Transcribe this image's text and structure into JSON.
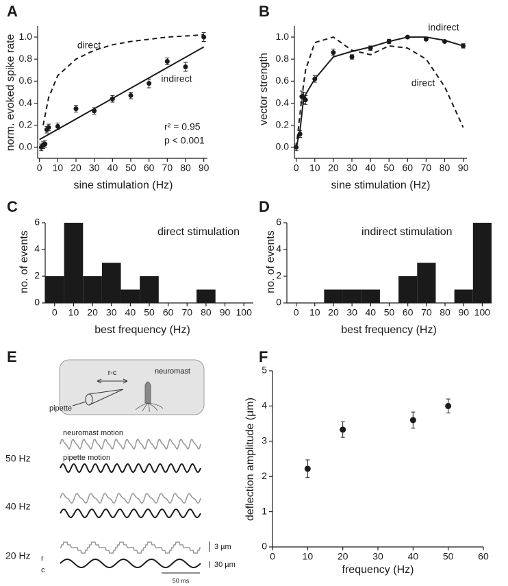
{
  "chart_data": [
    {
      "panel": "A",
      "type": "scatter",
      "xlabel": "sine stimulation (Hz)",
      "ylabel": "norm. evoked spike rate",
      "xlim": [
        -1,
        92
      ],
      "ylim": [
        -0.1,
        1.1
      ],
      "xticks": [
        0,
        10,
        20,
        30,
        40,
        50,
        60,
        70,
        80,
        90
      ],
      "yticks": [
        {
          "value": 0,
          "label": "0.0"
        },
        0.2,
        0.4,
        0.6,
        0.8,
        {
          "value": 1,
          "label": "1.0"
        }
      ],
      "series": [
        {
          "kind": "points",
          "color": "#1a1a1a",
          "x": [
            1,
            2,
            3,
            4,
            5,
            10,
            20,
            30,
            40,
            50,
            60,
            70,
            80,
            90
          ],
          "values": [
            0.0,
            0.02,
            0.03,
            0.16,
            0.18,
            0.19,
            0.35,
            0.33,
            0.44,
            0.47,
            0.58,
            0.78,
            0.73,
            1.0
          ],
          "errors": [
            0.03,
            0.03,
            0.03,
            0.03,
            0.03,
            0.03,
            0.03,
            0.03,
            0.03,
            0.03,
            0.04,
            0.03,
            0.04,
            0.04
          ]
        },
        {
          "name": "indirect",
          "kind": "line",
          "style": "solid",
          "color": "#1a1a1a",
          "x": [
            0,
            90
          ],
          "values": [
            0.07,
            0.91
          ]
        },
        {
          "name": "direct",
          "kind": "line",
          "style": "dashed",
          "color": "#1a1a1a",
          "x": [
            2,
            5,
            10,
            20,
            30,
            40,
            50,
            60,
            70,
            80,
            90
          ],
          "values": [
            0.2,
            0.45,
            0.65,
            0.8,
            0.88,
            0.93,
            0.96,
            0.98,
            1.0,
            1.01,
            1.02
          ]
        }
      ],
      "annotations": [
        "r² = 0.95",
        "p < 0.001"
      ]
    },
    {
      "panel": "B",
      "type": "scatter",
      "xlabel": "sine stimulation (Hz)",
      "ylabel": "vector strength",
      "xlim": [
        -1,
        92
      ],
      "ylim": [
        -0.1,
        1.1
      ],
      "xticks": [
        0,
        10,
        20,
        30,
        40,
        50,
        60,
        70,
        80,
        90
      ],
      "yticks": [
        {
          "value": 0,
          "label": "0.0"
        },
        0.2,
        0.4,
        0.6,
        0.8,
        {
          "value": 1,
          "label": "1.0"
        }
      ],
      "series": [
        {
          "kind": "points",
          "color": "#1a1a1a",
          "x": [
            0,
            2,
            3,
            4,
            5,
            10,
            20,
            30,
            40,
            50,
            60,
            70,
            80,
            90
          ],
          "values": [
            0.0,
            0.12,
            0.46,
            0.45,
            0.43,
            0.62,
            0.86,
            0.82,
            0.9,
            0.96,
            1.0,
            0.98,
            0.96,
            0.92
          ],
          "errors": [
            0.03,
            0.03,
            0.05,
            0.05,
            0.04,
            0.03,
            0.03,
            0.02,
            0.02,
            0.02,
            0.01,
            0.01,
            0.01,
            0.02
          ]
        },
        {
          "name": "indirect",
          "kind": "line",
          "style": "solid",
          "color": "#1a1a1a",
          "x": [
            0,
            2,
            4,
            10,
            20,
            30,
            40,
            50,
            60,
            70,
            80,
            90
          ],
          "values": [
            0.0,
            0.15,
            0.45,
            0.62,
            0.82,
            0.87,
            0.91,
            0.96,
            1.0,
            1.0,
            0.97,
            0.92
          ]
        },
        {
          "name": "direct",
          "kind": "line",
          "style": "dashed",
          "color": "#1a1a1a",
          "x": [
            0,
            3,
            5,
            10,
            20,
            30,
            40,
            50,
            60,
            70,
            80,
            90
          ],
          "values": [
            0.0,
            0.45,
            0.7,
            0.95,
            1.0,
            0.88,
            0.84,
            0.92,
            0.9,
            0.8,
            0.55,
            0.18
          ]
        }
      ]
    },
    {
      "panel": "C",
      "type": "histogram",
      "xlabel": "best frequency (Hz)",
      "ylabel": "no. of events",
      "color": "#1a1a1a",
      "xlim": [
        -5,
        105
      ],
      "ylim": [
        0,
        6
      ],
      "xticks": [
        0,
        10,
        20,
        30,
        40,
        50,
        60,
        70,
        80,
        90,
        100
      ],
      "yticks": [
        0,
        2,
        4,
        6
      ],
      "bins": [
        -5,
        5,
        15,
        25,
        35,
        45,
        55,
        65,
        75,
        85,
        95,
        105
      ],
      "values": [
        2,
        6,
        2,
        3,
        1,
        2,
        0,
        0,
        1,
        0,
        0
      ],
      "annotations": [
        "direct stimulation"
      ]
    },
    {
      "panel": "D",
      "type": "histogram",
      "xlabel": "best frequency (Hz)",
      "ylabel": "no. of events",
      "color": "#1a1a1a",
      "xlim": [
        -5,
        105
      ],
      "ylim": [
        0,
        6
      ],
      "xticks": [
        0,
        10,
        20,
        30,
        40,
        50,
        60,
        70,
        80,
        90,
        100
      ],
      "yticks": [
        0,
        2,
        4,
        6
      ],
      "bins": [
        -5,
        5,
        15,
        25,
        35,
        45,
        55,
        65,
        75,
        85,
        95,
        105
      ],
      "values": [
        0,
        0,
        1,
        1,
        1,
        0,
        2,
        3,
        0,
        1,
        6
      ],
      "annotations": [
        "indirect stimulation"
      ]
    },
    {
      "panel": "F",
      "type": "scatter",
      "xlabel": "frequency (Hz)",
      "ylabel": "deflection amplitude (µm)",
      "xlim": [
        0,
        60
      ],
      "ylim": [
        0,
        5
      ],
      "xticks": [
        0,
        10,
        20,
        30,
        40,
        50,
        60
      ],
      "yticks": [
        0,
        1,
        2,
        3,
        4,
        5
      ],
      "series": [
        {
          "kind": "points",
          "color": "#1a1a1a",
          "x": [
            10,
            20,
            40,
            50
          ],
          "values": [
            2.22,
            3.33,
            3.6,
            4.0
          ],
          "errors": [
            0.25,
            0.22,
            0.23,
            0.2
          ]
        }
      ]
    }
  ],
  "panel_e": {
    "panel": "E",
    "schematic": {
      "distance": "r-c",
      "neuromast": "neuromast",
      "pipette": "pipette"
    },
    "trace_titles": [
      "neuromast motion",
      "pipette motion"
    ],
    "rows": [
      "50 Hz",
      "40 Hz",
      "20 Hz"
    ],
    "trace_letters": [
      "r",
      "c"
    ],
    "scale_bars": [
      "3 µm",
      "30 µm",
      "50 ms"
    ]
  }
}
